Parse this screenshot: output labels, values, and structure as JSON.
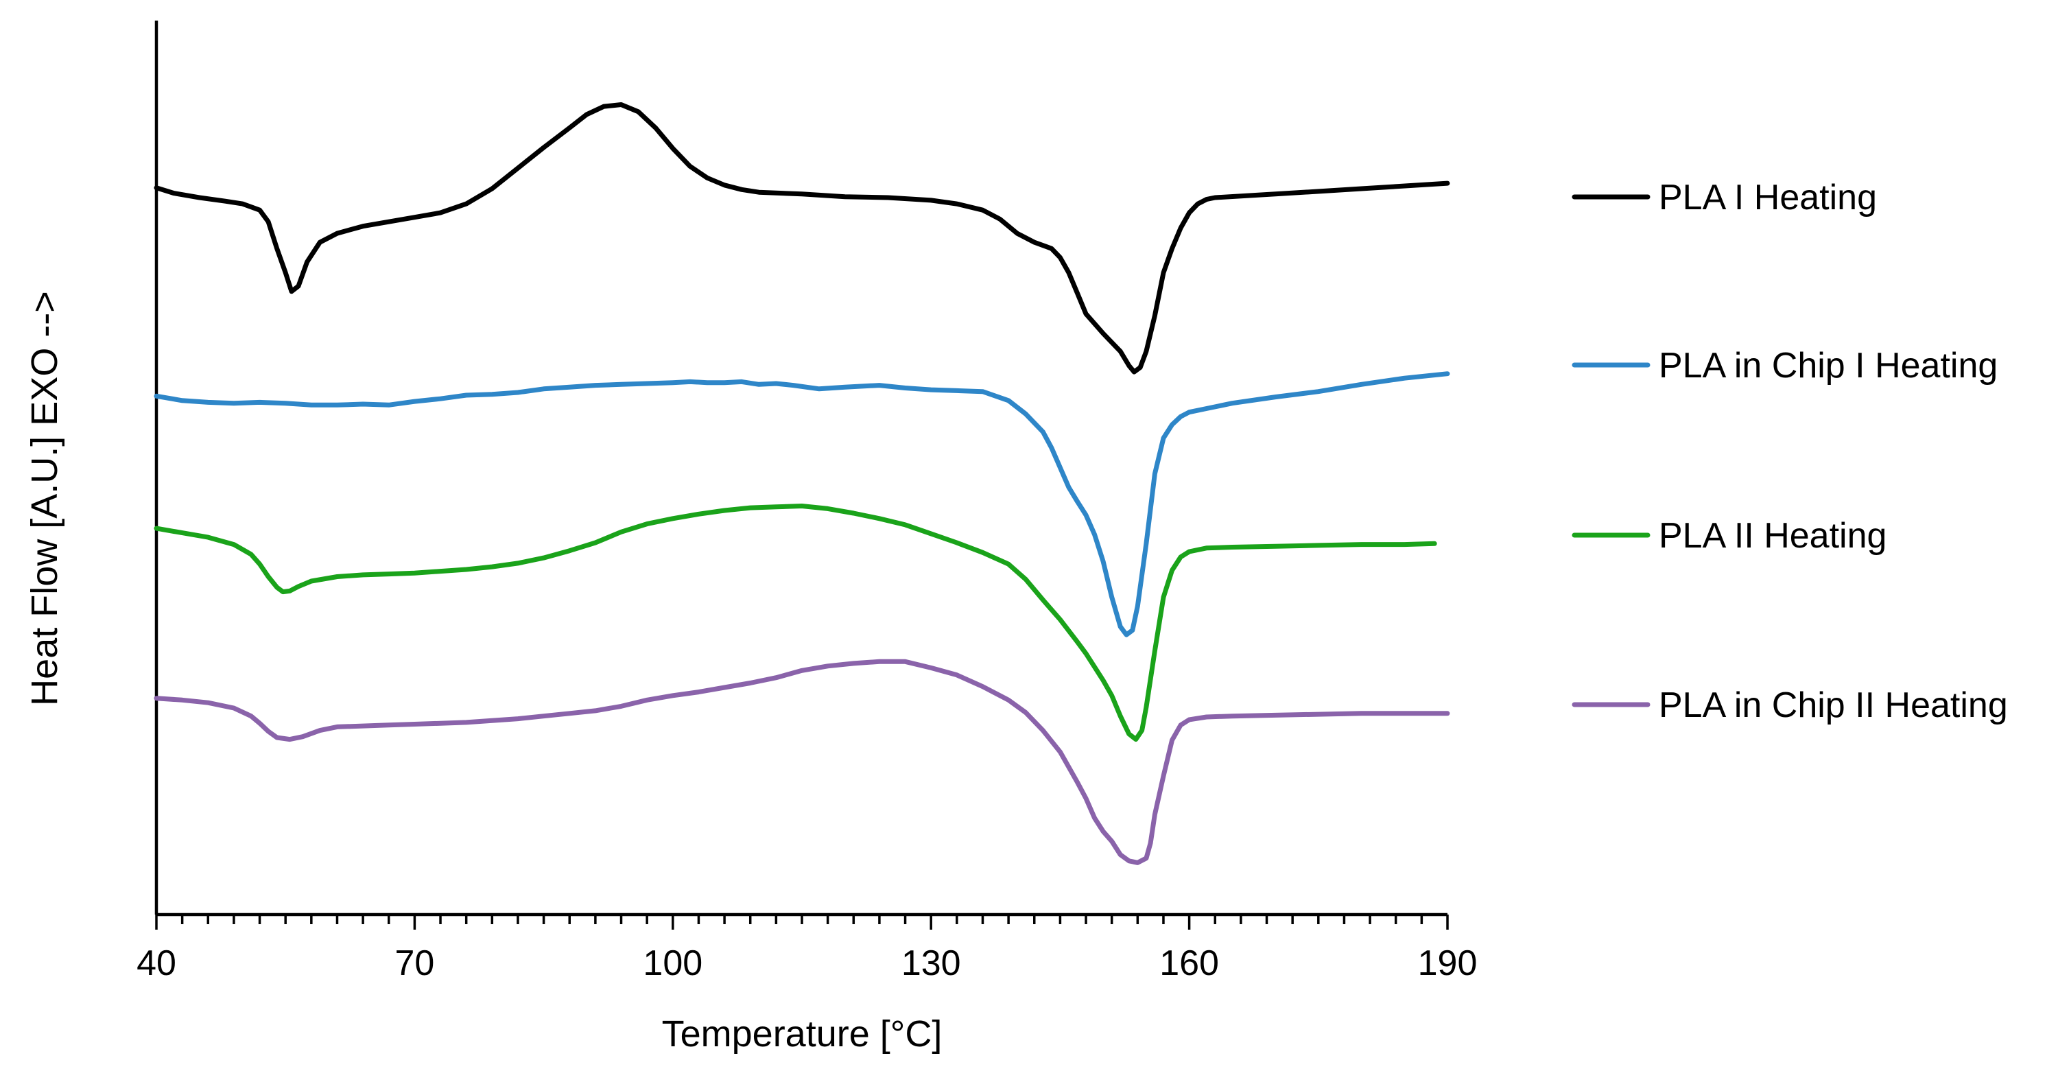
{
  "chart_data": {
    "type": "line",
    "xlabel": "Temperature [°C]",
    "ylabel": "Heat Flow [A.U.] EXO -->",
    "xlim": [
      40,
      190
    ],
    "ylim": [
      0,
      1
    ],
    "x_ticks": [
      40,
      70,
      100,
      130,
      160,
      190
    ],
    "x_minor_step": 3,
    "grid": false,
    "legend_position": "right",
    "series": [
      {
        "name": "PLA I Heating",
        "color": "#000000",
        "points": [
          [
            40,
            0.813
          ],
          [
            42,
            0.807
          ],
          [
            45,
            0.802
          ],
          [
            48,
            0.798
          ],
          [
            50,
            0.795
          ],
          [
            52,
            0.788
          ],
          [
            53,
            0.775
          ],
          [
            54,
            0.745
          ],
          [
            55,
            0.718
          ],
          [
            55.7,
            0.697
          ],
          [
            56.5,
            0.703
          ],
          [
            57.5,
            0.73
          ],
          [
            59,
            0.752
          ],
          [
            61,
            0.762
          ],
          [
            64,
            0.77
          ],
          [
            67,
            0.775
          ],
          [
            70,
            0.78
          ],
          [
            73,
            0.785
          ],
          [
            76,
            0.795
          ],
          [
            79,
            0.812
          ],
          [
            82,
            0.835
          ],
          [
            85,
            0.858
          ],
          [
            88,
            0.88
          ],
          [
            90,
            0.895
          ],
          [
            92,
            0.904
          ],
          [
            94,
            0.906
          ],
          [
            96,
            0.898
          ],
          [
            98,
            0.88
          ],
          [
            100,
            0.857
          ],
          [
            102,
            0.837
          ],
          [
            104,
            0.824
          ],
          [
            106,
            0.816
          ],
          [
            108,
            0.811
          ],
          [
            110,
            0.808
          ],
          [
            115,
            0.806
          ],
          [
            120,
            0.803
          ],
          [
            125,
            0.802
          ],
          [
            130,
            0.799
          ],
          [
            133,
            0.795
          ],
          [
            136,
            0.788
          ],
          [
            138,
            0.778
          ],
          [
            140,
            0.762
          ],
          [
            142,
            0.752
          ],
          [
            144,
            0.745
          ],
          [
            145,
            0.735
          ],
          [
            146,
            0.718
          ],
          [
            147,
            0.695
          ],
          [
            148,
            0.672
          ],
          [
            150,
            0.65
          ],
          [
            152,
            0.63
          ],
          [
            153,
            0.614
          ],
          [
            153.6,
            0.607
          ],
          [
            154.3,
            0.612
          ],
          [
            155,
            0.63
          ],
          [
            156,
            0.67
          ],
          [
            157,
            0.718
          ],
          [
            158,
            0.745
          ],
          [
            159,
            0.768
          ],
          [
            160,
            0.785
          ],
          [
            161,
            0.795
          ],
          [
            162,
            0.8
          ],
          [
            163,
            0.802
          ],
          [
            170,
            0.806
          ],
          [
            180,
            0.812
          ],
          [
            190,
            0.818
          ]
        ]
      },
      {
        "name": "PLA in Chip I Heating",
        "color": "#2e86c8",
        "points": [
          [
            40,
            0.58
          ],
          [
            43,
            0.575
          ],
          [
            46,
            0.573
          ],
          [
            49,
            0.572
          ],
          [
            52,
            0.573
          ],
          [
            55,
            0.572
          ],
          [
            58,
            0.57
          ],
          [
            61,
            0.57
          ],
          [
            64,
            0.571
          ],
          [
            67,
            0.57
          ],
          [
            70,
            0.574
          ],
          [
            73,
            0.577
          ],
          [
            76,
            0.581
          ],
          [
            79,
            0.582
          ],
          [
            82,
            0.584
          ],
          [
            85,
            0.588
          ],
          [
            88,
            0.59
          ],
          [
            91,
            0.592
          ],
          [
            94,
            0.593
          ],
          [
            97,
            0.594
          ],
          [
            100,
            0.595
          ],
          [
            102,
            0.596
          ],
          [
            104,
            0.595
          ],
          [
            106,
            0.595
          ],
          [
            108,
            0.596
          ],
          [
            110,
            0.593
          ],
          [
            112,
            0.594
          ],
          [
            114,
            0.592
          ],
          [
            117,
            0.588
          ],
          [
            120,
            0.59
          ],
          [
            124,
            0.592
          ],
          [
            127,
            0.589
          ],
          [
            130,
            0.587
          ],
          [
            133,
            0.586
          ],
          [
            136,
            0.585
          ],
          [
            139,
            0.575
          ],
          [
            141,
            0.56
          ],
          [
            143,
            0.54
          ],
          [
            144,
            0.522
          ],
          [
            145,
            0.5
          ],
          [
            146,
            0.478
          ],
          [
            147,
            0.462
          ],
          [
            148,
            0.447
          ],
          [
            149,
            0.425
          ],
          [
            150,
            0.395
          ],
          [
            151,
            0.355
          ],
          [
            152,
            0.322
          ],
          [
            152.7,
            0.313
          ],
          [
            153.4,
            0.318
          ],
          [
            154,
            0.345
          ],
          [
            155,
            0.415
          ],
          [
            156,
            0.493
          ],
          [
            157,
            0.533
          ],
          [
            158,
            0.548
          ],
          [
            159,
            0.557
          ],
          [
            160,
            0.562
          ],
          [
            162,
            0.566
          ],
          [
            165,
            0.572
          ],
          [
            170,
            0.579
          ],
          [
            175,
            0.585
          ],
          [
            180,
            0.593
          ],
          [
            185,
            0.6
          ],
          [
            190,
            0.605
          ]
        ]
      },
      {
        "name": "PLA II Heating",
        "color": "#1aa31a",
        "points": [
          [
            40,
            0.432
          ],
          [
            43,
            0.427
          ],
          [
            46,
            0.422
          ],
          [
            49,
            0.414
          ],
          [
            51,
            0.403
          ],
          [
            52,
            0.392
          ],
          [
            53,
            0.378
          ],
          [
            54,
            0.366
          ],
          [
            54.7,
            0.361
          ],
          [
            55.5,
            0.362
          ],
          [
            56.5,
            0.367
          ],
          [
            58,
            0.373
          ],
          [
            61,
            0.378
          ],
          [
            64,
            0.38
          ],
          [
            67,
            0.381
          ],
          [
            70,
            0.382
          ],
          [
            73,
            0.384
          ],
          [
            76,
            0.386
          ],
          [
            79,
            0.389
          ],
          [
            82,
            0.393
          ],
          [
            85,
            0.399
          ],
          [
            88,
            0.407
          ],
          [
            91,
            0.416
          ],
          [
            94,
            0.428
          ],
          [
            97,
            0.437
          ],
          [
            100,
            0.443
          ],
          [
            103,
            0.448
          ],
          [
            106,
            0.452
          ],
          [
            109,
            0.455
          ],
          [
            112,
            0.456
          ],
          [
            115,
            0.457
          ],
          [
            118,
            0.454
          ],
          [
            121,
            0.449
          ],
          [
            124,
            0.443
          ],
          [
            127,
            0.436
          ],
          [
            130,
            0.426
          ],
          [
            133,
            0.416
          ],
          [
            136,
            0.405
          ],
          [
            139,
            0.392
          ],
          [
            141,
            0.375
          ],
          [
            143,
            0.352
          ],
          [
            145,
            0.33
          ],
          [
            147,
            0.305
          ],
          [
            148,
            0.292
          ],
          [
            149,
            0.277
          ],
          [
            150,
            0.262
          ],
          [
            151,
            0.245
          ],
          [
            152,
            0.222
          ],
          [
            153,
            0.202
          ],
          [
            153.8,
            0.196
          ],
          [
            154.5,
            0.206
          ],
          [
            155,
            0.232
          ],
          [
            156,
            0.295
          ],
          [
            157,
            0.355
          ],
          [
            158,
            0.385
          ],
          [
            159,
            0.4
          ],
          [
            160,
            0.406
          ],
          [
            162,
            0.41
          ],
          [
            165,
            0.411
          ],
          [
            170,
            0.412
          ],
          [
            175,
            0.413
          ],
          [
            180,
            0.414
          ],
          [
            185,
            0.414
          ],
          [
            188.5,
            0.415
          ]
        ]
      },
      {
        "name": "PLA in Chip II Heating",
        "color": "#8a63aa",
        "points": [
          [
            40,
            0.242
          ],
          [
            43,
            0.24
          ],
          [
            46,
            0.237
          ],
          [
            49,
            0.231
          ],
          [
            51,
            0.222
          ],
          [
            52,
            0.214
          ],
          [
            53,
            0.205
          ],
          [
            54,
            0.198
          ],
          [
            55.5,
            0.196
          ],
          [
            57,
            0.199
          ],
          [
            59,
            0.206
          ],
          [
            61,
            0.21
          ],
          [
            64,
            0.211
          ],
          [
            67,
            0.212
          ],
          [
            70,
            0.213
          ],
          [
            73,
            0.214
          ],
          [
            76,
            0.215
          ],
          [
            79,
            0.217
          ],
          [
            82,
            0.219
          ],
          [
            85,
            0.222
          ],
          [
            88,
            0.225
          ],
          [
            91,
            0.228
          ],
          [
            94,
            0.233
          ],
          [
            97,
            0.24
          ],
          [
            100,
            0.245
          ],
          [
            103,
            0.249
          ],
          [
            106,
            0.254
          ],
          [
            109,
            0.259
          ],
          [
            112,
            0.265
          ],
          [
            115,
            0.273
          ],
          [
            118,
            0.278
          ],
          [
            121,
            0.281
          ],
          [
            124,
            0.283
          ],
          [
            127,
            0.283
          ],
          [
            130,
            0.276
          ],
          [
            133,
            0.268
          ],
          [
            136,
            0.255
          ],
          [
            139,
            0.24
          ],
          [
            141,
            0.226
          ],
          [
            143,
            0.206
          ],
          [
            145,
            0.182
          ],
          [
            147,
            0.148
          ],
          [
            148,
            0.13
          ],
          [
            149,
            0.108
          ],
          [
            150,
            0.093
          ],
          [
            151,
            0.082
          ],
          [
            152,
            0.067
          ],
          [
            153,
            0.06
          ],
          [
            154,
            0.058
          ],
          [
            155,
            0.063
          ],
          [
            155.5,
            0.08
          ],
          [
            156,
            0.112
          ],
          [
            157,
            0.155
          ],
          [
            158,
            0.195
          ],
          [
            159,
            0.212
          ],
          [
            160,
            0.218
          ],
          [
            162,
            0.221
          ],
          [
            165,
            0.222
          ],
          [
            170,
            0.223
          ],
          [
            175,
            0.224
          ],
          [
            180,
            0.225
          ],
          [
            185,
            0.225
          ],
          [
            190,
            0.225
          ]
        ]
      }
    ]
  }
}
